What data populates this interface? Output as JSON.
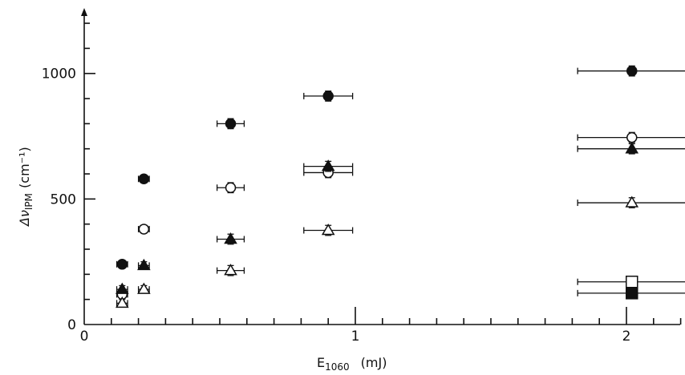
{
  "chart_data": {
    "type": "scatter",
    "xlabel": "E",
    "xlabel_sub": "1060",
    "xlabel_unit": "(mJ)",
    "ylabel": "Δν",
    "ylabel_sub": "IPM",
    "ylabel_unit": "(cm⁻¹)",
    "xlim": [
      0,
      2.2
    ],
    "ylim": [
      0,
      1230
    ],
    "x_ticks": [
      0,
      1,
      2
    ],
    "x_tick_labels": [
      "0",
      "1",
      "2"
    ],
    "y_ticks": [
      0,
      500,
      1000
    ],
    "y_tick_labels": [
      "0",
      "500",
      "1000"
    ],
    "grid": false,
    "series": [
      {
        "marker": "filled-circle",
        "points": [
          {
            "x": 0.14,
            "y": 240,
            "xerr": 0.02,
            "yerr": 15
          },
          {
            "x": 0.22,
            "y": 580,
            "xerr": 0.02,
            "yerr": 15
          },
          {
            "x": 0.54,
            "y": 800,
            "xerr": 0.05,
            "yerr": 20
          },
          {
            "x": 0.9,
            "y": 910,
            "xerr": 0.09,
            "yerr": 20
          },
          {
            "x": 2.02,
            "y": 1010,
            "xerr": 0.2,
            "yerr": 20
          }
        ]
      },
      {
        "marker": "open-circle",
        "points": [
          {
            "x": 0.14,
            "y": 120,
            "xerr": 0.02,
            "yerr": 15
          },
          {
            "x": 0.22,
            "y": 380,
            "xerr": 0.02,
            "yerr": 15
          },
          {
            "x": 0.54,
            "y": 545,
            "xerr": 0.05,
            "yerr": 20
          },
          {
            "x": 0.9,
            "y": 605,
            "xerr": 0.09,
            "yerr": 20
          },
          {
            "x": 2.02,
            "y": 745,
            "xerr": 0.2,
            "yerr": 20
          }
        ]
      },
      {
        "marker": "filled-triangle",
        "points": [
          {
            "x": 0.14,
            "y": 140,
            "xerr": 0.02,
            "yerr": 15
          },
          {
            "x": 0.22,
            "y": 235,
            "xerr": 0.02,
            "yerr": 15
          },
          {
            "x": 0.54,
            "y": 340,
            "xerr": 0.05,
            "yerr": 20
          },
          {
            "x": 0.9,
            "y": 630,
            "xerr": 0.09,
            "yerr": 20
          },
          {
            "x": 2.02,
            "y": 700,
            "xerr": 0.2,
            "yerr": 20
          }
        ]
      },
      {
        "marker": "open-triangle",
        "points": [
          {
            "x": 0.14,
            "y": 85,
            "xerr": 0.02,
            "yerr": 15
          },
          {
            "x": 0.22,
            "y": 140,
            "xerr": 0.02,
            "yerr": 15
          },
          {
            "x": 0.54,
            "y": 215,
            "xerr": 0.05,
            "yerr": 20
          },
          {
            "x": 0.9,
            "y": 375,
            "xerr": 0.09,
            "yerr": 20
          },
          {
            "x": 2.02,
            "y": 485,
            "xerr": 0.2,
            "yerr": 20
          }
        ]
      },
      {
        "marker": "open-square",
        "points": [
          {
            "x": 2.02,
            "y": 170,
            "xerr": 0.2,
            "yerr": 0
          }
        ]
      },
      {
        "marker": "filled-square",
        "points": [
          {
            "x": 2.02,
            "y": 125,
            "xerr": 0.2,
            "yerr": 0
          }
        ]
      }
    ]
  }
}
